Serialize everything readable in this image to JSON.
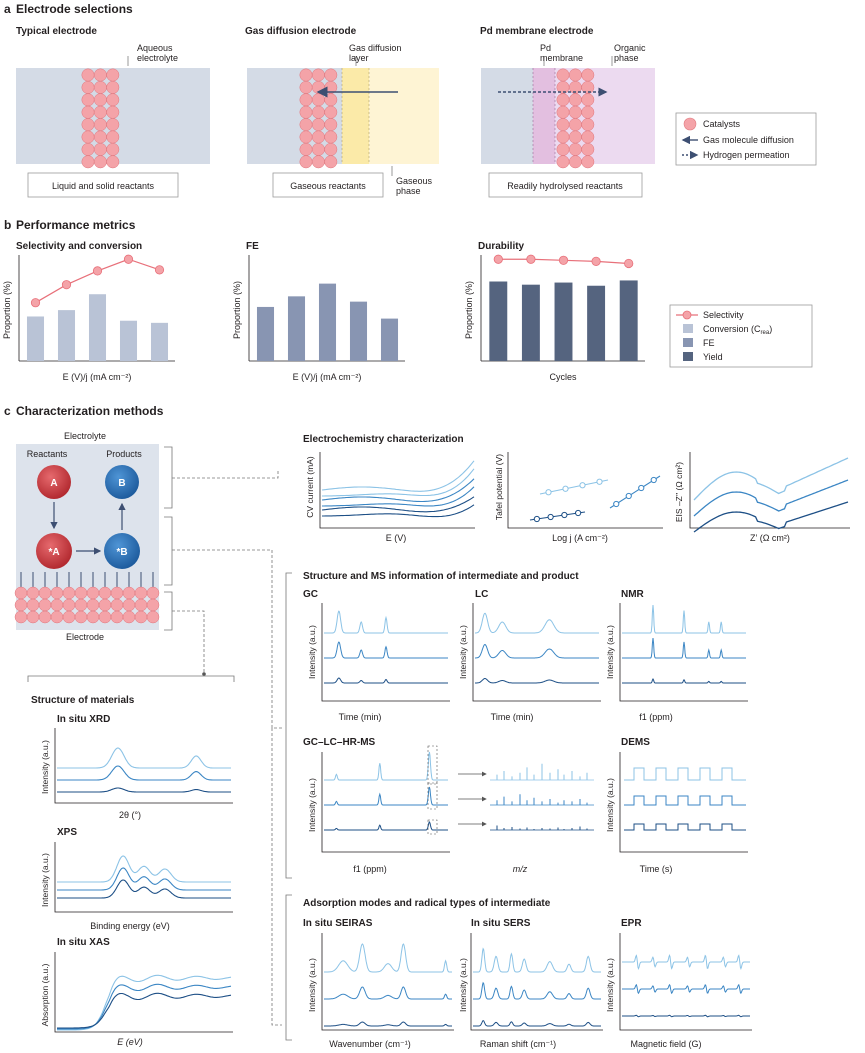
{
  "panel_a": {
    "letter": "a",
    "title": "Electrode selections",
    "typical": {
      "title": "Typical electrode",
      "label": "Aqueous\nelectrolyte",
      "caption": "Liquid and solid reactants"
    },
    "gde": {
      "title": "Gas diffusion electrode",
      "label": "Gas diffusion\nlayer",
      "label2": "Gaseous\nphase",
      "caption": "Gaseous reactants"
    },
    "pd": {
      "title": "Pd membrane electrode",
      "label": "Pd\nmembrane",
      "label2": "Organic\nphase",
      "caption": "Readily hydrolysed reactants"
    },
    "legend": [
      "Catalysts",
      "Gas molecule diffusion",
      "Hydrogen permeation"
    ]
  },
  "panel_b": {
    "letter": "b",
    "title": "Performance metrics",
    "charts": [
      {
        "title": "Selectivity and conversion",
        "ylabel": "Proportion (%)",
        "xlabel": "E (V)/j (mA cm⁻²)"
      },
      {
        "title": "FE",
        "ylabel": "Proportion (%)",
        "xlabel": "E (V)/j (mA cm⁻²)"
      },
      {
        "title": "Durability",
        "ylabel": "Proportion (%)",
        "xlabel": "Cycles"
      }
    ],
    "legend": [
      "Selectivity",
      "Conversion (C",
      "FE",
      "Yield"
    ],
    "legend_sub": "rea",
    "legend_close": ")"
  },
  "panel_c": {
    "letter": "c",
    "title": "Characterization methods",
    "scheme": {
      "electrolyte": "Electrolyte",
      "reactants": "Reactants",
      "products": "Products",
      "electrode": "Electrode",
      "A": "A",
      "B": "B",
      "sA": "*A",
      "sB": "*B"
    },
    "electrochem": {
      "title": "Electrochemistry characterization",
      "cv": {
        "ylabel": "CV current (mA)",
        "xlabel": "E (V)"
      },
      "tafel": {
        "ylabel": "Tafel potential (V)",
        "xlabel": "Log j (A cm⁻²)"
      },
      "eis": {
        "ylabel": "EIS –Z’’ (Ω cm²)",
        "xlabel": "Z’ (Ω cm²)"
      }
    },
    "ms": {
      "title": "Structure and MS information of intermediate and product",
      "gc": {
        "title": "GC",
        "ylabel": "Intensity (a.u.)",
        "xlabel": "Time (min)"
      },
      "lc": {
        "title": "LC",
        "ylabel": "Intensity (a.u.)",
        "xlabel": "Time (min)"
      },
      "nmr": {
        "title": "NMR",
        "ylabel": "Intensity (a.u.)",
        "xlabel": "f1 (ppm)"
      },
      "gclc": {
        "title": "GC–LC–HR-MS",
        "ylabel": "Intensity (a.u.)",
        "xlabel": "f1 (ppm)",
        "xlabel2": "m/z"
      },
      "dems": {
        "title": "DEMS",
        "ylabel": "Intensity (a.u.)",
        "xlabel": "Time (s)"
      }
    },
    "materials": {
      "title": "Structure of materials",
      "xrd": {
        "title": "In situ XRD",
        "ylabel": "Intensity (a.u.)",
        "xlabel": "2θ (°)"
      },
      "xps": {
        "title": "XPS",
        "ylabel": "Intensity (a.u.)",
        "xlabel": "Binding energy (eV)"
      },
      "xas": {
        "title": "In situ XAS",
        "ylabel": "Absorption (a.u.)",
        "xlabel": "E (eV)"
      }
    },
    "adsorption": {
      "title": "Adsorption modes and radical types of intermediate",
      "seiras": {
        "title": "In situ SEIRAS",
        "ylabel": "Intensity (a.u.)",
        "xlabel": "Wavenumber (cm⁻¹)"
      },
      "sers": {
        "title": "In situ SERS",
        "ylabel": "Intensity (a.u.)",
        "xlabel": "Raman shift (cm⁻¹)"
      },
      "epr": {
        "title": "EPR",
        "ylabel": "Intensity (a.u.)",
        "xlabel": "Magnetic field (G)"
      }
    }
  },
  "colors": {
    "electrolyte": "#d4dbe6",
    "gas_layer": "#fbeaa8",
    "gas_phase": "#fef4d4",
    "pd_membrane": "#e3bfe0",
    "organic": "#ecdaf0",
    "catalyst": "#f4a3a8",
    "catalyst_stroke": "#e0777e",
    "selectivity": "#e8707a",
    "conversion": "#b9c3d6",
    "fe": "#8895b2",
    "yield": "#55647f",
    "light": "#8cc3e6",
    "mid": "#3b86c4",
    "dark": "#1d4f86",
    "species_red": "#c8343a",
    "species_blue": "#2a6fb5",
    "scheme_bg": "#dde3ec"
  }
}
